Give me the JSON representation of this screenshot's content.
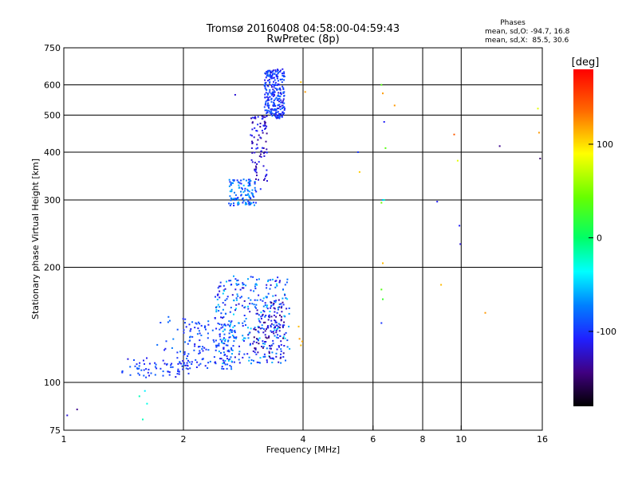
{
  "chart_data": {
    "type": "scatter",
    "title": "Tromsø 20160408 04:58:00-04:59:43",
    "subtitle": "RwPretec (8p)",
    "xlabel": "Frequency [MHz]",
    "ylabel": "Stationary phase Virtual Height [km]",
    "x_scale": "log",
    "y_scale": "log",
    "xlim": [
      1,
      16
    ],
    "ylim": [
      75,
      750
    ],
    "x_ticks": [
      1,
      2,
      4,
      6,
      8,
      10,
      16
    ],
    "y_ticks": [
      75,
      100,
      200,
      300,
      400,
      500,
      600,
      750
    ],
    "x_gridlines": [
      2,
      4,
      6,
      8,
      10
    ],
    "y_gridlines": [
      100,
      200,
      300,
      400,
      500,
      600
    ],
    "grid": true,
    "stats": {
      "heading": "Phases",
      "line_o": "mean, sd,O: -94.7, 16.8",
      "line_x": "mean, sd,X:  85.5, 30.6"
    },
    "colorbar": {
      "label": "[deg]",
      "range": [
        -180,
        180
      ],
      "ticks": [
        100,
        0,
        -100
      ]
    },
    "series": [
      {
        "clusters": [
          {
            "x_range": [
              1.4,
              2.1
            ],
            "y_range": [
              103,
              116
            ],
            "count": 70,
            "color_range": [
              -120,
              -80
            ]
          },
          {
            "x_range": [
              1.7,
              2.2
            ],
            "y_range": [
              118,
              150
            ],
            "count": 25,
            "color_range": [
              -115,
              -70
            ]
          },
          {
            "x_range": [
              2.0,
              2.7
            ],
            "y_range": [
              108,
              145
            ],
            "count": 130,
            "color_range": [
              -115,
              -75
            ]
          },
          {
            "x_range": [
              2.4,
              3.7
            ],
            "y_range": [
              112,
              190
            ],
            "count": 330,
            "color_range": [
              -125,
              -45
            ]
          },
          {
            "x_range": [
              3.0,
              3.6
            ],
            "y_range": [
              115,
              165
            ],
            "count": 110,
            "color_range": [
              -150,
              -90
            ]
          },
          {
            "x_range": [
              2.6,
              3.05
            ],
            "y_range": [
              290,
              340
            ],
            "count": 110,
            "color_range": [
              -110,
              -55
            ]
          },
          {
            "x_range": [
              2.95,
              3.25
            ],
            "y_range": [
              320,
              500
            ],
            "count": 90,
            "color_range": [
              -140,
              -100
            ]
          },
          {
            "x_range": [
              3.2,
              3.6
            ],
            "y_range": [
              490,
              660
            ],
            "count": 260,
            "color_range": [
              -120,
              -80
            ]
          }
        ],
        "points": [
          {
            "x": 1.02,
            "y": 82,
            "phase": -120
          },
          {
            "x": 1.08,
            "y": 85,
            "phase": -140
          },
          {
            "x": 1.55,
            "y": 92,
            "phase": -20
          },
          {
            "x": 1.6,
            "y": 95,
            "phase": -40
          },
          {
            "x": 1.58,
            "y": 80,
            "phase": -20
          },
          {
            "x": 1.62,
            "y": 88,
            "phase": -30
          },
          {
            "x": 2.7,
            "y": 565,
            "phase": -120
          },
          {
            "x": 3.95,
            "y": 610,
            "phase": 110
          },
          {
            "x": 4.05,
            "y": 575,
            "phase": 120
          },
          {
            "x": 3.9,
            "y": 140,
            "phase": 110
          },
          {
            "x": 3.92,
            "y": 130,
            "phase": 120
          },
          {
            "x": 3.95,
            "y": 125,
            "phase": 110
          },
          {
            "x": 3.98,
            "y": 128,
            "phase": 115
          },
          {
            "x": 5.5,
            "y": 400,
            "phase": -100
          },
          {
            "x": 5.55,
            "y": 355,
            "phase": 105
          },
          {
            "x": 6.3,
            "y": 600,
            "phase": 30
          },
          {
            "x": 6.35,
            "y": 570,
            "phase": 120
          },
          {
            "x": 6.4,
            "y": 480,
            "phase": -110
          },
          {
            "x": 6.45,
            "y": 410,
            "phase": 30
          },
          {
            "x": 6.3,
            "y": 295,
            "phase": 40
          },
          {
            "x": 6.35,
            "y": 300,
            "phase": -60
          },
          {
            "x": 6.4,
            "y": 300,
            "phase": -20
          },
          {
            "x": 6.35,
            "y": 205,
            "phase": 110
          },
          {
            "x": 6.3,
            "y": 175,
            "phase": 30
          },
          {
            "x": 6.35,
            "y": 165,
            "phase": 20
          },
          {
            "x": 6.3,
            "y": 143,
            "phase": -100
          },
          {
            "x": 6.8,
            "y": 530,
            "phase": 120
          },
          {
            "x": 8.7,
            "y": 297,
            "phase": -110
          },
          {
            "x": 8.9,
            "y": 180,
            "phase": 110
          },
          {
            "x": 9.6,
            "y": 445,
            "phase": 140
          },
          {
            "x": 9.8,
            "y": 380,
            "phase": 80
          },
          {
            "x": 9.9,
            "y": 257,
            "phase": -110
          },
          {
            "x": 9.95,
            "y": 230,
            "phase": -120
          },
          {
            "x": 11.5,
            "y": 152,
            "phase": 120
          },
          {
            "x": 12.5,
            "y": 415,
            "phase": -140
          },
          {
            "x": 15.6,
            "y": 520,
            "phase": 80
          },
          {
            "x": 15.7,
            "y": 450,
            "phase": 120
          },
          {
            "x": 15.8,
            "y": 385,
            "phase": -150
          }
        ]
      }
    ]
  }
}
